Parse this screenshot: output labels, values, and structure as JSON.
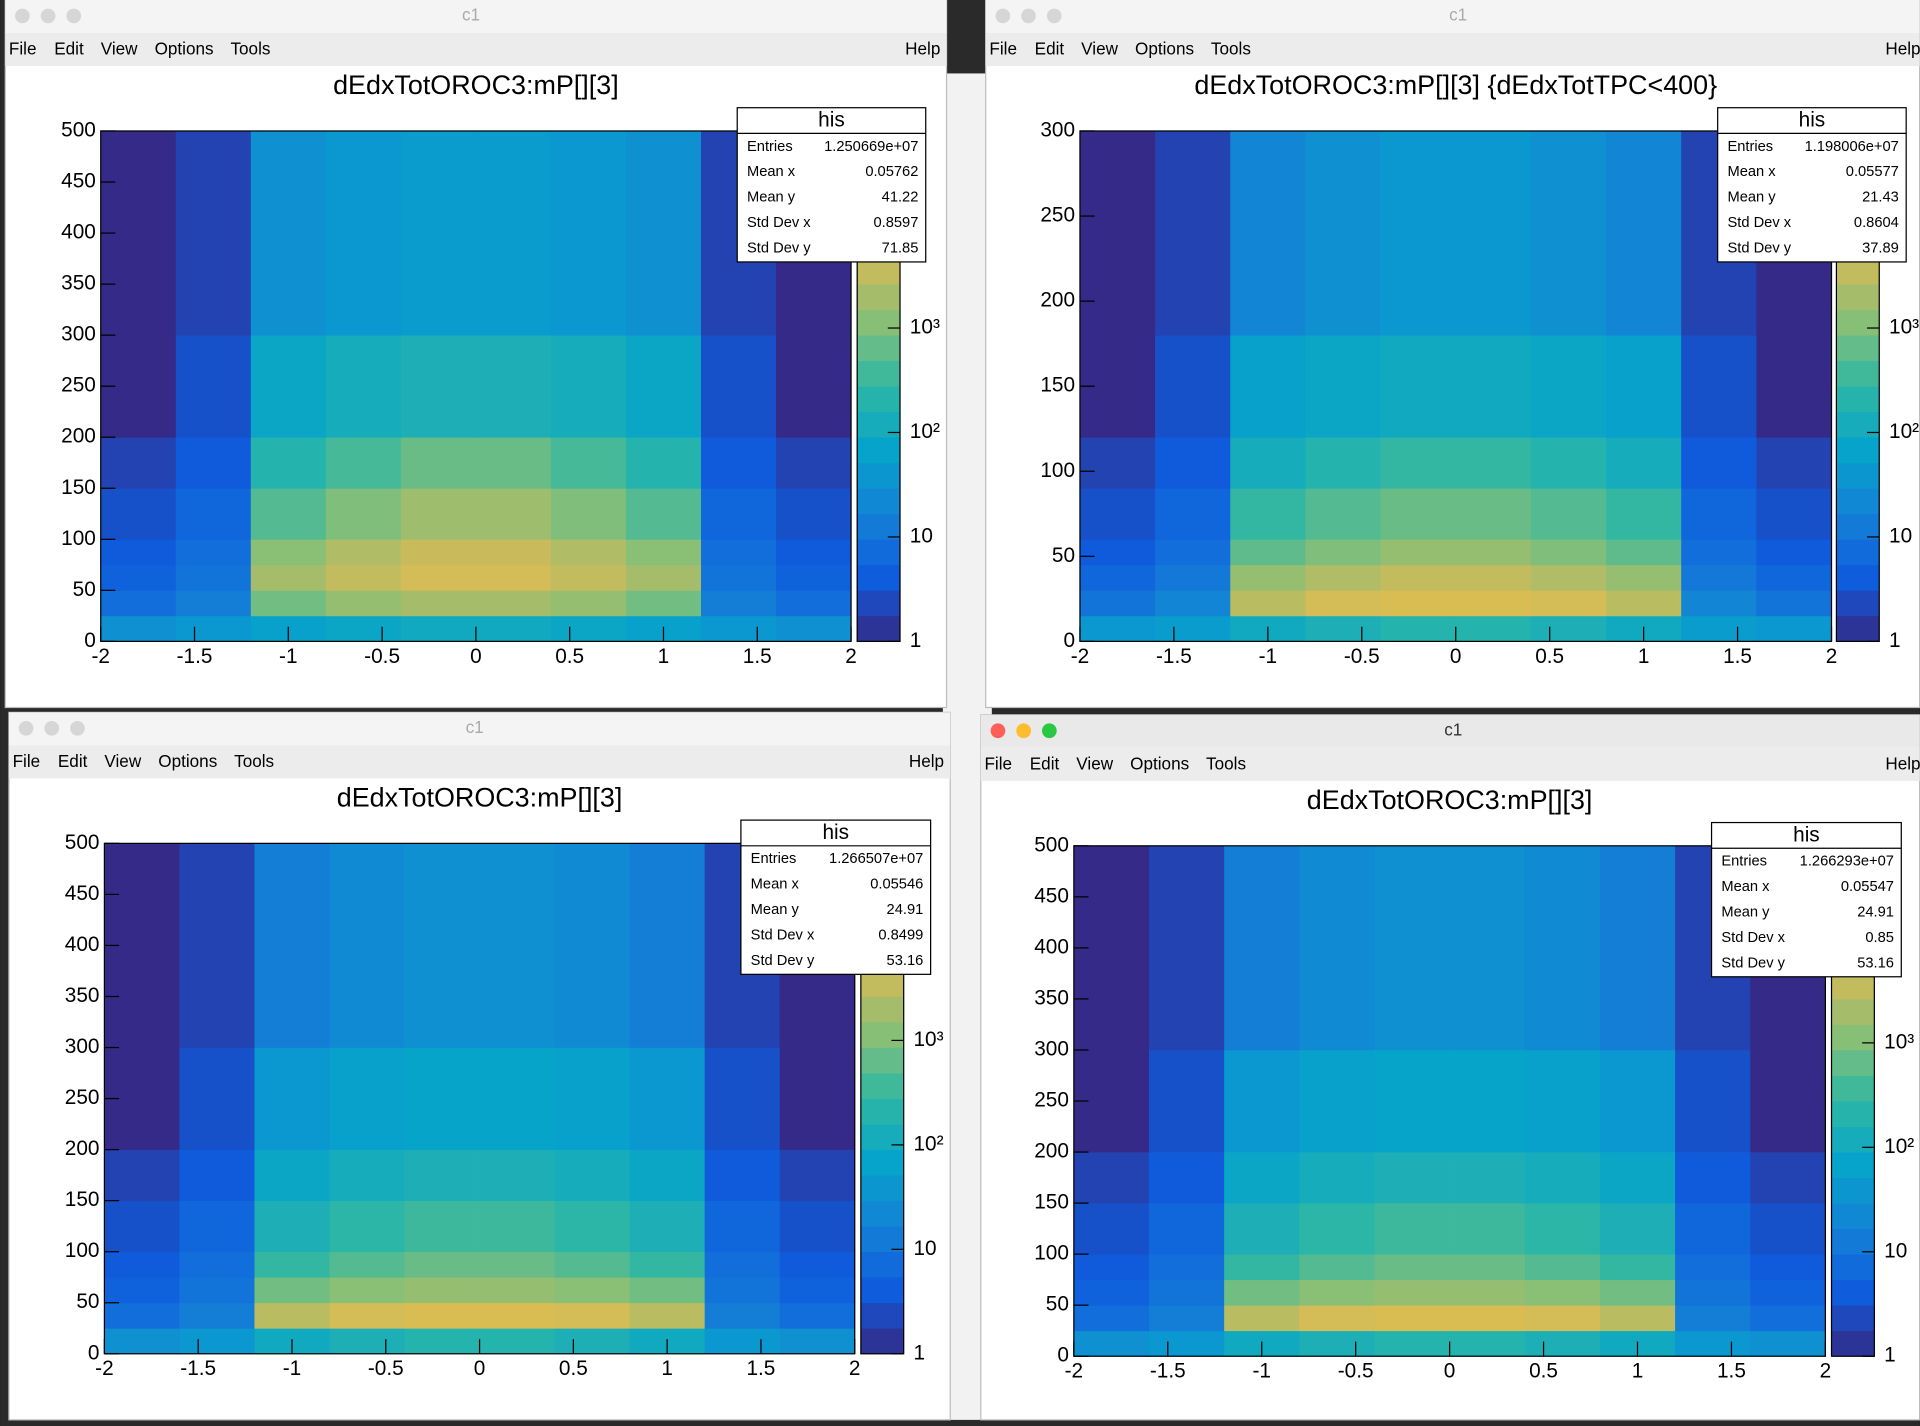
{
  "windows": [
    {
      "title": "c1",
      "menu": [
        "File",
        "Edit",
        "View",
        "Options",
        "Tools"
      ],
      "help": "Help",
      "stats": {
        "title": "his",
        "rows": [
          [
            "Entries",
            "1.250669e+07"
          ],
          [
            "Mean x",
            "0.05762"
          ],
          [
            "Mean y",
            "41.22"
          ],
          [
            "Std Dev x",
            "0.8597"
          ],
          [
            "Std Dev y",
            "71.85"
          ]
        ]
      }
    },
    {
      "title": "c1",
      "menu": [
        "File",
        "Edit",
        "View",
        "Options",
        "Tools"
      ],
      "help": "Help",
      "stats": {
        "title": "his",
        "rows": [
          [
            "Entries",
            "1.198006e+07"
          ],
          [
            "Mean x",
            "0.05577"
          ],
          [
            "Mean y",
            "21.43"
          ],
          [
            "Std Dev x",
            "0.8604"
          ],
          [
            "Std Dev y",
            "37.89"
          ]
        ]
      }
    },
    {
      "title": "c1",
      "menu": [
        "File",
        "Edit",
        "View",
        "Options",
        "Tools"
      ],
      "help": "Help",
      "stats": {
        "title": "his",
        "rows": [
          [
            "Entries",
            "1.266507e+07"
          ],
          [
            "Mean x",
            "0.05546"
          ],
          [
            "Mean y",
            "24.91"
          ],
          [
            "Std Dev x",
            "0.8499"
          ],
          [
            "Std Dev y",
            "53.16"
          ]
        ]
      }
    },
    {
      "title": "c1",
      "menu": [
        "File",
        "Edit",
        "View",
        "Options",
        "Tools"
      ],
      "help": "Help",
      "stats": {
        "title": "his",
        "rows": [
          [
            "Entries",
            "1.266293e+07"
          ],
          [
            "Mean x",
            "0.05547"
          ],
          [
            "Mean y",
            "24.91"
          ],
          [
            "Std Dev x",
            "0.85"
          ],
          [
            "Std Dev y",
            "53.16"
          ]
        ]
      }
    }
  ],
  "palette": [
    "#352a87",
    "#0f5cdd",
    "#1481d6",
    "#06a4ca",
    "#2eb7a4",
    "#87bf77",
    "#d1bb59",
    "#fec832",
    "#f9fb0e"
  ],
  "chart_data": [
    {
      "type": "heatmap",
      "title": "dEdxTotOROC3:mP[][3]",
      "xbins": [
        -2,
        -1.6,
        -1.2,
        -0.8,
        -0.4,
        0,
        0.4,
        0.8,
        1.2,
        1.6,
        2
      ],
      "ybins": [
        0,
        25,
        50,
        75,
        100,
        150,
        200,
        300,
        500
      ],
      "z": [
        [
          30,
          40,
          60,
          80,
          100,
          100,
          80,
          60,
          40,
          30
        ],
        [
          8,
          15,
          800,
          1500,
          2000,
          2000,
          1500,
          800,
          15,
          8
        ],
        [
          5,
          10,
          2000,
          3500,
          5000,
          5000,
          3500,
          2000,
          10,
          5
        ],
        [
          4,
          8,
          1200,
          2500,
          4000,
          4000,
          2500,
          1200,
          8,
          4
        ],
        [
          3,
          6,
          500,
          1000,
          1800,
          1800,
          1000,
          500,
          6,
          3
        ],
        [
          2,
          4,
          200,
          400,
          700,
          700,
          400,
          200,
          4,
          2
        ],
        [
          1,
          3,
          80,
          120,
          150,
          150,
          120,
          80,
          3,
          1
        ],
        [
          1,
          2,
          30,
          40,
          50,
          50,
          40,
          30,
          2,
          1
        ]
      ],
      "xlim": [
        -2,
        2
      ],
      "xticks": [
        -2,
        -1.5,
        -1,
        -0.5,
        0,
        0.5,
        1,
        1.5,
        2
      ],
      "ylim": [
        0,
        500
      ],
      "yticks": [
        0,
        50,
        100,
        150,
        200,
        250,
        300,
        350,
        400,
        450,
        500
      ],
      "zlim": [
        1,
        77000
      ],
      "zlog": true,
      "zticks": [
        1,
        10,
        {
          "value": 100,
          "label": "10²"
        },
        {
          "value": 1000,
          "label": "10³"
        }
      ]
    },
    {
      "type": "heatmap",
      "title": "dEdxTotOROC3:mP[][3] {dEdxTotTPC<400}",
      "xbins": [
        -2,
        -1.6,
        -1.2,
        -0.8,
        -0.4,
        0,
        0.4,
        0.8,
        1.2,
        1.6,
        2
      ],
      "ybins": [
        0,
        15,
        30,
        45,
        60,
        90,
        120,
        180,
        300
      ],
      "z": [
        [
          40,
          50,
          100,
          150,
          200,
          200,
          150,
          100,
          50,
          40
        ],
        [
          10,
          20,
          3000,
          5000,
          6000,
          6000,
          5000,
          3000,
          20,
          10
        ],
        [
          6,
          12,
          1500,
          2500,
          3500,
          3500,
          2500,
          1500,
          12,
          6
        ],
        [
          4,
          8,
          600,
          1000,
          1500,
          1500,
          1000,
          600,
          8,
          4
        ],
        [
          3,
          6,
          300,
          500,
          700,
          700,
          500,
          300,
          6,
          3
        ],
        [
          2,
          4,
          120,
          200,
          300,
          300,
          200,
          120,
          4,
          2
        ],
        [
          1,
          3,
          60,
          80,
          100,
          100,
          80,
          60,
          3,
          1
        ],
        [
          1,
          2,
          20,
          30,
          40,
          40,
          30,
          20,
          2,
          1
        ]
      ],
      "xlim": [
        -2,
        2
      ],
      "xticks": [
        -2,
        -1.5,
        -1,
        -0.5,
        0,
        0.5,
        1,
        1.5,
        2
      ],
      "ylim": [
        0,
        300
      ],
      "yticks": [
        0,
        50,
        100,
        150,
        200,
        250,
        300
      ],
      "zlim": [
        1,
        77000
      ],
      "zlog": true,
      "zticks": [
        1,
        10,
        {
          "value": 100,
          "label": "10²"
        },
        {
          "value": 1000,
          "label": "10³"
        }
      ]
    },
    {
      "type": "heatmap",
      "title": "dEdxTotOROC3:mP[][3]",
      "xbins": [
        -2,
        -1.6,
        -1.2,
        -0.8,
        -0.4,
        0,
        0.4,
        0.8,
        1.2,
        1.6,
        2
      ],
      "ybins": [
        0,
        25,
        50,
        75,
        100,
        150,
        200,
        300,
        500
      ],
      "z": [
        [
          30,
          40,
          100,
          150,
          200,
          200,
          150,
          100,
          40,
          30
        ],
        [
          8,
          15,
          3000,
          5000,
          6000,
          6000,
          5000,
          3000,
          15,
          8
        ],
        [
          5,
          10,
          800,
          1200,
          1500,
          1500,
          1200,
          800,
          10,
          5
        ],
        [
          4,
          8,
          300,
          500,
          700,
          700,
          500,
          300,
          8,
          4
        ],
        [
          3,
          6,
          150,
          250,
          350,
          350,
          250,
          150,
          6,
          3
        ],
        [
          2,
          4,
          80,
          120,
          150,
          150,
          120,
          80,
          4,
          2
        ],
        [
          1,
          3,
          40,
          60,
          70,
          70,
          60,
          40,
          3,
          1
        ],
        [
          1,
          2,
          15,
          25,
          30,
          30,
          25,
          15,
          2,
          1
        ]
      ],
      "xlim": [
        -2,
        2
      ],
      "xticks": [
        -2,
        -1.5,
        -1,
        -0.5,
        0,
        0.5,
        1,
        1.5,
        2
      ],
      "ylim": [
        0,
        500
      ],
      "yticks": [
        0,
        50,
        100,
        150,
        200,
        250,
        300,
        350,
        400,
        450,
        500
      ],
      "zlim": [
        1,
        77000
      ],
      "zlog": true,
      "zticks": [
        1,
        10,
        {
          "value": 100,
          "label": "10²"
        },
        {
          "value": 1000,
          "label": "10³"
        }
      ]
    },
    {
      "type": "heatmap",
      "title": "dEdxTotOROC3:mP[][3]",
      "xbins": [
        -2,
        -1.6,
        -1.2,
        -0.8,
        -0.4,
        0,
        0.4,
        0.8,
        1.2,
        1.6,
        2
      ],
      "ybins": [
        0,
        25,
        50,
        75,
        100,
        150,
        200,
        300,
        500
      ],
      "z": [
        [
          30,
          40,
          100,
          150,
          200,
          200,
          150,
          100,
          40,
          30
        ],
        [
          8,
          15,
          3000,
          5000,
          6000,
          6000,
          5000,
          3000,
          15,
          8
        ],
        [
          5,
          10,
          800,
          1200,
          1500,
          1500,
          1200,
          800,
          10,
          5
        ],
        [
          4,
          8,
          300,
          500,
          700,
          700,
          500,
          300,
          8,
          4
        ],
        [
          3,
          6,
          150,
          250,
          350,
          350,
          250,
          150,
          6,
          3
        ],
        [
          2,
          4,
          80,
          120,
          150,
          150,
          120,
          80,
          4,
          2
        ],
        [
          1,
          3,
          40,
          60,
          70,
          70,
          60,
          40,
          3,
          1
        ],
        [
          1,
          2,
          15,
          25,
          30,
          30,
          25,
          15,
          2,
          1
        ]
      ],
      "xlim": [
        -2,
        2
      ],
      "xticks": [
        -2,
        -1.5,
        -1,
        -0.5,
        0,
        0.5,
        1,
        1.5,
        2
      ],
      "ylim": [
        0,
        500
      ],
      "yticks": [
        0,
        50,
        100,
        150,
        200,
        250,
        300,
        350,
        400,
        450,
        500
      ],
      "zlim": [
        1,
        77000
      ],
      "zlog": true,
      "zticks": [
        1,
        10,
        {
          "value": 100,
          "label": "10²"
        },
        {
          "value": 1000,
          "label": "10³"
        }
      ]
    }
  ]
}
